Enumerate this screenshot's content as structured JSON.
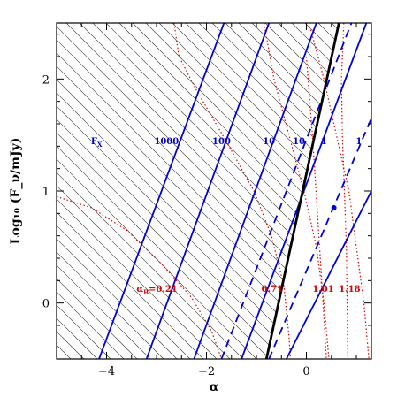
{
  "chart_data": {
    "type": "line",
    "xlabel": "α",
    "ylabel": "Log₁₀ (F_ν/mJy)",
    "xlim": [
      -5,
      1.3
    ],
    "ylim": [
      -0.5,
      2.5
    ],
    "xticks": [
      -4,
      -2,
      0
    ],
    "yticks": [
      0,
      1,
      2
    ],
    "hatched_region": {
      "boundary": "black_line",
      "side": "left"
    },
    "colors": {
      "blue": "#0000dd",
      "red": "#dd0000",
      "black": "#000000"
    },
    "blue_solid_lines": [
      {
        "label": "1000",
        "points": [
          [
            -4.15,
            -0.5
          ],
          [
            -1.65,
            2.5
          ]
        ]
      },
      {
        "label": "100",
        "points": [
          [
            -3.2,
            -0.5
          ],
          [
            -0.75,
            2.5
          ]
        ]
      },
      {
        "label": "10",
        "points": [
          [
            -2.25,
            -0.5
          ],
          [
            0.2,
            2.5
          ]
        ]
      },
      {
        "label": "10",
        "points": [
          [
            -1.3,
            -0.5
          ],
          [
            1.2,
            2.5
          ]
        ]
      },
      {
        "label": "1",
        "points": [
          [
            -0.4,
            -0.5
          ],
          [
            1.3,
            1.0
          ]
        ]
      }
    ],
    "blue_dashed_lines": [
      {
        "points": [
          [
            -1.7,
            -0.5
          ],
          [
            0.9,
            2.5
          ]
        ]
      },
      {
        "points": [
          [
            -0.75,
            -0.5
          ],
          [
            1.3,
            1.65
          ]
        ]
      }
    ],
    "black_line": {
      "points": [
        [
          -0.8,
          -0.5
        ],
        [
          0.65,
          2.5
        ]
      ]
    },
    "blue_point": {
      "x": 0.55,
      "y": 0.85
    },
    "red_dotted_curves": [
      {
        "points": [
          [
            -5.0,
            0.95
          ],
          [
            -4.3,
            0.85
          ],
          [
            -3.6,
            0.65
          ],
          [
            -2.9,
            0.35
          ],
          [
            -2.3,
            0.05
          ],
          [
            -1.9,
            -0.25
          ],
          [
            -1.7,
            -0.5
          ]
        ]
      },
      {
        "points": [
          [
            -2.65,
            2.5
          ],
          [
            -2.55,
            2.2
          ],
          [
            -2.2,
            1.9
          ],
          [
            -1.55,
            1.4
          ],
          [
            -1.05,
            1.0
          ],
          [
            -0.7,
            0.6
          ],
          [
            -0.45,
            0.15
          ],
          [
            -0.35,
            -0.3
          ],
          [
            -0.32,
            -0.5
          ]
        ]
      },
      {
        "points": [
          [
            -0.85,
            2.5
          ],
          [
            -0.65,
            2.0
          ],
          [
            -0.35,
            1.5
          ],
          [
            -0.05,
            1.0
          ],
          [
            0.2,
            0.5
          ],
          [
            0.35,
            0.0
          ],
          [
            0.45,
            -0.5
          ]
        ]
      },
      {
        "points": [
          [
            0.05,
            2.5
          ],
          [
            0.35,
            2.0
          ],
          [
            0.6,
            1.5
          ],
          [
            0.85,
            1.0
          ],
          [
            1.0,
            0.5
          ],
          [
            1.15,
            0.0
          ],
          [
            1.25,
            -0.5
          ]
        ]
      },
      {
        "points": [
          [
            0.0,
            2.2
          ],
          [
            0.12,
            1.5
          ],
          [
            0.22,
            0.8
          ],
          [
            0.32,
            0.1
          ],
          [
            0.4,
            -0.5
          ]
        ]
      },
      {
        "points": [
          [
            0.75,
            2.5
          ],
          [
            0.7,
            2.0
          ],
          [
            0.72,
            1.5
          ],
          [
            0.76,
            1.0
          ],
          [
            0.8,
            0.5
          ],
          [
            0.83,
            -0.5
          ]
        ]
      }
    ],
    "blue_labels": [
      {
        "text": "F",
        "subscript": "X",
        "x": -4.2,
        "y": 1.42
      },
      {
        "text": "1000",
        "x": -2.8,
        "y": 1.42
      },
      {
        "text": "100",
        "x": -1.7,
        "y": 1.42
      },
      {
        "text": "10",
        "x": -0.75,
        "y": 1.42
      },
      {
        "text": "10",
        "x": -0.15,
        "y": 1.42
      },
      {
        "text": "1",
        "x": 0.35,
        "y": 1.42
      },
      {
        "text": "1",
        "x": 1.05,
        "y": 1.42
      }
    ],
    "red_labels": [
      {
        "text": "α",
        "subscript": "B",
        "suffix": "=0.21",
        "x": -3.4,
        "y": 0.1
      },
      {
        "text": "0.71",
        "x": -0.9,
        "y": 0.1
      },
      {
        "text": "1.01",
        "x": 0.12,
        "y": 0.1
      },
      {
        "text": "1.18",
        "x": 0.65,
        "y": 0.1
      }
    ]
  }
}
